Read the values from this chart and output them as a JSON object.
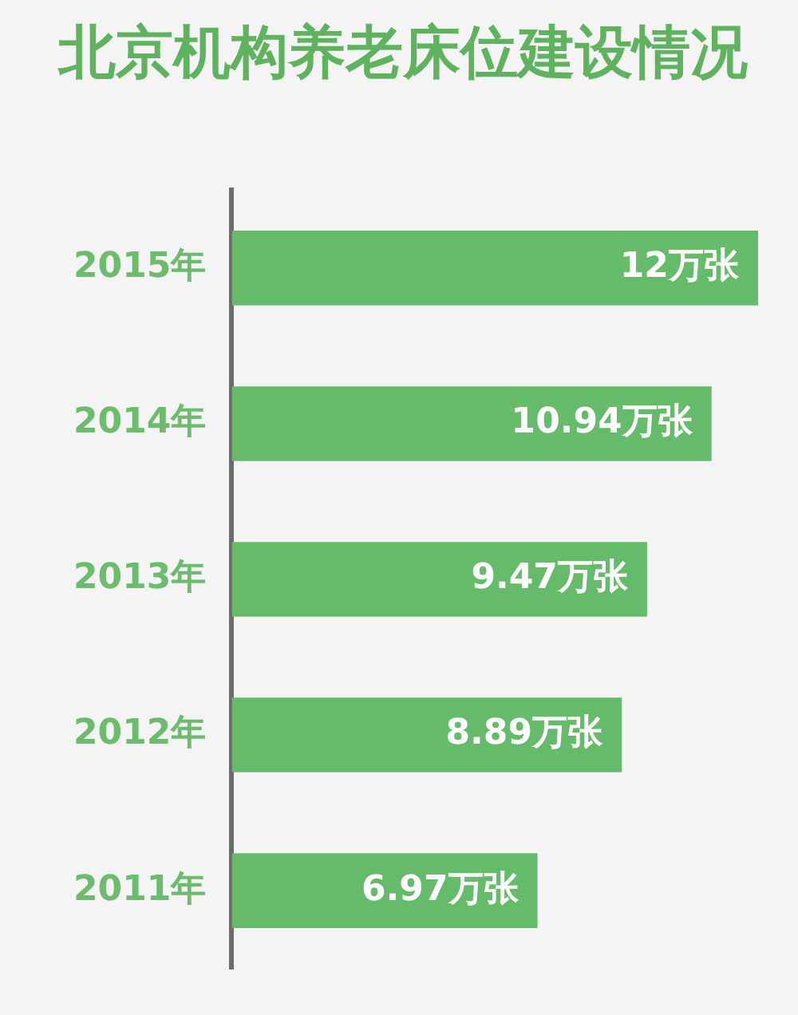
{
  "chart_data": {
    "type": "bar",
    "orientation": "horizontal",
    "title": "北京机构养老床位建设情况",
    "categories": [
      "2015年",
      "2014年",
      "2013年",
      "2012年",
      "2011年"
    ],
    "values": [
      12,
      10.94,
      9.47,
      8.89,
      6.97
    ],
    "value_labels": [
      "12万张",
      "10.94万张",
      "9.47万张",
      "8.89万张",
      "6.97万张"
    ],
    "color": "#66bb6a",
    "tick_labels": "y",
    "grid": false,
    "legend": false
  }
}
